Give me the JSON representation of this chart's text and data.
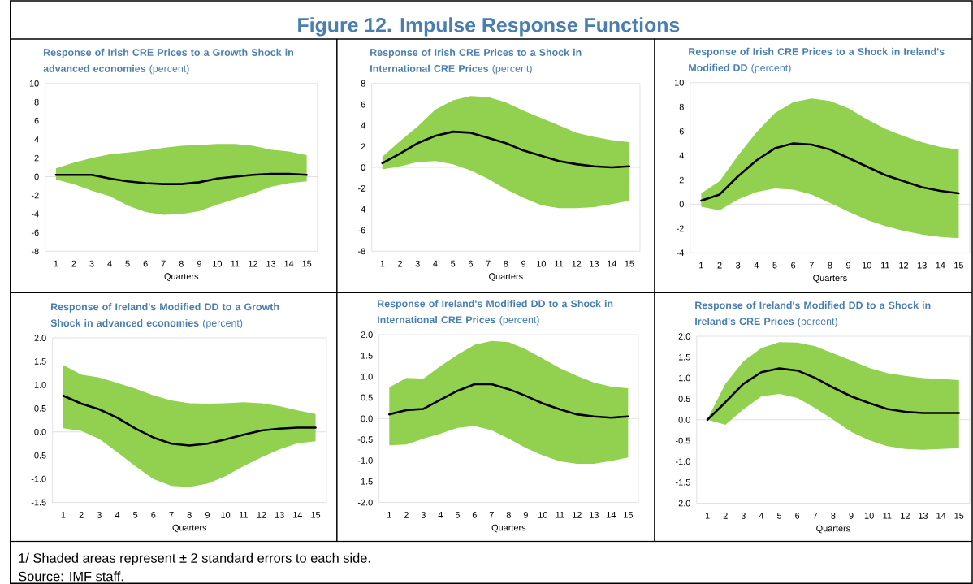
{
  "chart_data": [
    {
      "type": "other",
      "title": "Figure 12. Impulse Response Functions",
      "annotations": [
        "1/ Shaded areas represent ± 2 standard errors to each side.",
        "Source: IMF staff."
      ]
    },
    {
      "type": "line",
      "title": "**Response of Irish CRE Prices to a Growth Shock in advanced economies** (percent)",
      "xlabel": "Quarters",
      "categories": [
        "1",
        "2",
        "3",
        "4",
        "5",
        "6",
        "7",
        "8",
        "9",
        "10",
        "11",
        "12",
        "13",
        "14",
        "15"
      ],
      "ylim": [
        -8,
        10
      ],
      "yticks": [
        -8,
        -6,
        -4,
        -2,
        0,
        2,
        4,
        6,
        8,
        10
      ],
      "ref_lines": [
        {
          "axis": "y",
          "value": 0
        }
      ],
      "series": [
        {
          "color": "#000000",
          "values": [
            0.2,
            0.2,
            0.2,
            -0.2,
            -0.5,
            -0.7,
            -0.8,
            -0.8,
            -0.6,
            -0.2,
            0,
            0.2,
            0.3,
            0.3,
            0.2
          ],
          "lower": [
            -0.3,
            -0.8,
            -1.5,
            -2.1,
            -3.1,
            -3.8,
            -4.1,
            -4.0,
            -3.7,
            -3.0,
            -2.4,
            -1.8,
            -1.1,
            -0.7,
            -0.5
          ],
          "upper": [
            0.9,
            1.5,
            2.0,
            2.4,
            2.6,
            2.8,
            3.1,
            3.3,
            3.4,
            3.5,
            3.5,
            3.3,
            2.9,
            2.7,
            2.3
          ]
        }
      ]
    },
    {
      "type": "line",
      "title": "**Response of Irish CRE Prices to a Shock in International CRE Prices** (percent)",
      "xlabel": "Quarters",
      "categories": [
        "1",
        "2",
        "3",
        "4",
        "5",
        "6",
        "7",
        "8",
        "9",
        "10",
        "11",
        "12",
        "13",
        "14",
        "15"
      ],
      "ylim": [
        -8,
        8
      ],
      "yticks": [
        -8,
        -6,
        -4,
        -2,
        0,
        2,
        4,
        6,
        8
      ],
      "ref_lines": [
        {
          "axis": "y",
          "value": 0
        }
      ],
      "series": [
        {
          "color": "#000000",
          "values": [
            0.4,
            1.3,
            2.3,
            3.0,
            3.4,
            3.3,
            2.8,
            2.3,
            1.6,
            1.1,
            0.6,
            0.3,
            0.1,
            0,
            0.1
          ],
          "lower": [
            -0.2,
            0.1,
            0.5,
            0.6,
            0.3,
            -0.3,
            -1.1,
            -2.1,
            -2.9,
            -3.6,
            -3.9,
            -3.9,
            -3.8,
            -3.5,
            -3.2
          ],
          "upper": [
            1.0,
            2.5,
            3.9,
            5.5,
            6.4,
            6.8,
            6.7,
            6.2,
            5.4,
            4.7,
            4.0,
            3.3,
            2.9,
            2.6,
            2.4
          ]
        }
      ]
    },
    {
      "type": "line",
      "title": "**Response of Irish CRE Prices to a Shock in Ireland's Modified DD** (percent)",
      "xlabel": "Quarters",
      "categories": [
        "1",
        "2",
        "3",
        "4",
        "5",
        "6",
        "7",
        "8",
        "9",
        "10",
        "11",
        "12",
        "13",
        "14",
        "15"
      ],
      "ylim": [
        -4,
        10
      ],
      "yticks": [
        -4,
        -2,
        0,
        2,
        4,
        6,
        8,
        10
      ],
      "ref_lines": [
        {
          "axis": "y",
          "value": 0
        }
      ],
      "series": [
        {
          "color": "#000000",
          "values": [
            0.3,
            0.8,
            2.3,
            3.6,
            4.6,
            5.0,
            4.9,
            4.5,
            3.8,
            3.1,
            2.4,
            1.9,
            1.4,
            1.1,
            0.9
          ],
          "lower": [
            -0.2,
            -0.5,
            0.4,
            1.0,
            1.3,
            1.2,
            0.8,
            0.1,
            -0.6,
            -1.3,
            -1.8,
            -2.2,
            -2.5,
            -2.7,
            -2.8
          ],
          "upper": [
            0.9,
            1.9,
            4.0,
            5.9,
            7.5,
            8.4,
            8.7,
            8.5,
            7.9,
            7.0,
            6.2,
            5.6,
            5.1,
            4.7,
            4.5
          ]
        }
      ]
    },
    {
      "type": "line",
      "title": "**Response of Ireland's Modified DD to a Growth Shock in advanced economies** (percent)",
      "xlabel": "Quarters",
      "categories": [
        "1",
        "2",
        "3",
        "4",
        "5",
        "6",
        "7",
        "8",
        "9",
        "10",
        "11",
        "12",
        "13",
        "14",
        "15"
      ],
      "ylim": [
        -1.5,
        2
      ],
      "yticks": [
        -1.5,
        {
          "value": -1,
          "label": "-1.0"
        },
        -0.5,
        {
          "value": 0,
          "label": "0.0"
        },
        0.5,
        {
          "value": 1,
          "label": "1.0"
        },
        1.5,
        {
          "value": 2,
          "label": "2.0"
        }
      ],
      "ref_lines": [
        {
          "axis": "y",
          "value": 0
        }
      ],
      "series": [
        {
          "color": "#000000",
          "values": [
            0.77,
            0.6,
            0.48,
            0.3,
            0.07,
            -0.12,
            -0.25,
            -0.29,
            -0.25,
            -0.16,
            -0.06,
            0.03,
            0.07,
            0.09,
            0.09
          ],
          "lower": [
            0.08,
            0.02,
            -0.15,
            -0.43,
            -0.73,
            -1.0,
            -1.15,
            -1.17,
            -1.1,
            -0.94,
            -0.73,
            -0.54,
            -0.37,
            -0.24,
            -0.2
          ],
          "upper": [
            1.42,
            1.22,
            1.16,
            1.04,
            0.92,
            0.78,
            0.67,
            0.61,
            0.6,
            0.61,
            0.63,
            0.61,
            0.55,
            0.46,
            0.38
          ]
        }
      ]
    },
    {
      "type": "line",
      "title": "**Response of Ireland's Modified DD to a Shock in International CRE Prices** (percent)",
      "xlabel": "Quarters",
      "categories": [
        "1",
        "2",
        "3",
        "4",
        "5",
        "6",
        "7",
        "8",
        "9",
        "10",
        "11",
        "12",
        "13",
        "14",
        "15"
      ],
      "ylim": [
        -2,
        2
      ],
      "yticks": [
        {
          "value": -2,
          "label": "-2.0"
        },
        -1.5,
        {
          "value": -1,
          "label": "-1.0"
        },
        -0.5,
        {
          "value": 0,
          "label": "0.0"
        },
        0.5,
        {
          "value": 1,
          "label": "1.0"
        },
        1.5,
        {
          "value": 2,
          "label": "2.0"
        }
      ],
      "ref_lines": [
        {
          "axis": "y",
          "value": 0
        }
      ],
      "series": [
        {
          "color": "#000000",
          "values": [
            0.1,
            0.2,
            0.23,
            0.45,
            0.66,
            0.82,
            0.82,
            0.7,
            0.54,
            0.36,
            0.22,
            0.1,
            0.05,
            0.02,
            0.05
          ],
          "lower": [
            -0.64,
            -0.62,
            -0.48,
            -0.36,
            -0.22,
            -0.18,
            -0.28,
            -0.48,
            -0.7,
            -0.88,
            -1.02,
            -1.08,
            -1.08,
            -1.01,
            -0.93
          ],
          "upper": [
            0.74,
            0.97,
            0.95,
            1.25,
            1.52,
            1.76,
            1.85,
            1.82,
            1.65,
            1.43,
            1.2,
            1.02,
            0.86,
            0.76,
            0.72
          ]
        }
      ]
    },
    {
      "type": "line",
      "title": "**Response of Ireland's Modified DD to a Shock in Ireland's CRE Prices** (percent)",
      "xlabel": "Quarters",
      "categories": [
        "1",
        "2",
        "3",
        "4",
        "5",
        "6",
        "7",
        "8",
        "9",
        "10",
        "11",
        "12",
        "13",
        "14",
        "15"
      ],
      "ylim": [
        -2,
        2
      ],
      "yticks": [
        {
          "value": -2,
          "label": "-2.0"
        },
        -1.5,
        {
          "value": -1,
          "label": "-1.0"
        },
        -0.5,
        {
          "value": 0,
          "label": "0.0"
        },
        0.5,
        {
          "value": 1,
          "label": "1.0"
        },
        1.5,
        {
          "value": 2,
          "label": "2.0"
        }
      ],
      "ref_lines": [
        {
          "axis": "y",
          "value": 0
        }
      ],
      "series": [
        {
          "color": "#000000",
          "values": [
            0,
            0.42,
            0.86,
            1.14,
            1.23,
            1.18,
            1.0,
            0.77,
            0.56,
            0.4,
            0.26,
            0.19,
            0.16,
            0.16,
            0.16
          ],
          "lower": [
            0,
            -0.12,
            0.25,
            0.56,
            0.62,
            0.52,
            0.28,
            0.0,
            -0.29,
            -0.49,
            -0.63,
            -0.7,
            -0.72,
            -0.7,
            -0.68
          ],
          "upper": [
            0.02,
            0.86,
            1.4,
            1.72,
            1.86,
            1.85,
            1.76,
            1.59,
            1.42,
            1.24,
            1.12,
            1.05,
            1.0,
            0.98,
            0.95
          ]
        }
      ]
    }
  ]
}
